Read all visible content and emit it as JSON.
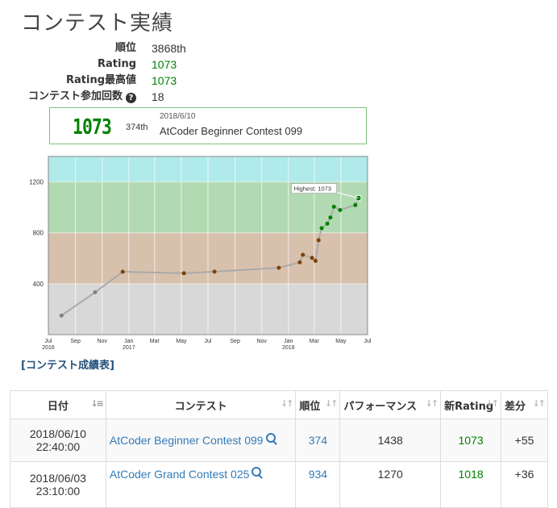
{
  "page_title": "コンテスト実績",
  "stats": [
    {
      "key": "順位",
      "value": "3868th"
    },
    {
      "key": "Rating",
      "value": "1073"
    },
    {
      "key": "Rating最高値",
      "value": "1073"
    },
    {
      "key": "コンテスト参加回数",
      "value": "18"
    }
  ],
  "latest": {
    "rating": "1073",
    "rank": "374th",
    "date": "2018/6/10",
    "contest": "AtCoder Beginner Contest 099"
  },
  "chart_data": {
    "type": "line",
    "y_ticks": [
      400,
      800,
      1200
    ],
    "x_ticks": [
      "Jul 2016",
      "Sep",
      "Nov",
      "Jan 2017",
      "Mar",
      "May",
      "Jul",
      "Sep",
      "Nov",
      "Jan 2018",
      "Mar",
      "May",
      "Jul"
    ],
    "tooltip": "Highest: 1073",
    "bands": [
      {
        "from": 0,
        "to": 400,
        "color": "#d8d8d8"
      },
      {
        "from": 400,
        "to": 800,
        "color": "#d7c1ac"
      },
      {
        "from": 800,
        "to": 1200,
        "color": "#b2dab2"
      },
      {
        "from": 1200,
        "to": 1400,
        "color": "#b0eaea"
      }
    ],
    "y_range": [
      0,
      1400
    ],
    "series": [
      {
        "points": [
          {
            "x": "2016-07-31",
            "y": 150
          },
          {
            "x": "2016-10-16",
            "y": 333
          },
          {
            "x": "2016-12-18",
            "y": 494
          },
          {
            "x": "2017-05-07",
            "y": 482
          },
          {
            "x": "2017-07-16",
            "y": 495
          },
          {
            "x": "2017-12-10",
            "y": 525
          },
          {
            "x": "2018-01-27",
            "y": 568
          },
          {
            "x": "2018-02-03",
            "y": 627
          },
          {
            "x": "2018-02-24",
            "y": 603
          },
          {
            "x": "2018-03-04",
            "y": 580
          },
          {
            "x": "2018-03-11",
            "y": 742
          },
          {
            "x": "2018-03-18",
            "y": 836
          },
          {
            "x": "2018-03-31",
            "y": 872
          },
          {
            "x": "2018-04-07",
            "y": 920
          },
          {
            "x": "2018-04-15",
            "y": 1005
          },
          {
            "x": "2018-04-29",
            "y": 979
          },
          {
            "x": "2018-06-03",
            "y": 1018
          },
          {
            "x": "2018-06-10",
            "y": 1073
          }
        ]
      }
    ]
  },
  "result_link": "[コンテスト成績表]",
  "table": {
    "headers": [
      "日付",
      "コンテスト",
      "順位",
      "パフォーマンス",
      "新Rating",
      "差分"
    ],
    "rows": [
      {
        "date1": "2018/06/10",
        "date2": "22:40:00",
        "contest": "AtCoder Beginner Contest 099",
        "rank": "374",
        "perf": "1438",
        "rating": "1073",
        "diff": "+55"
      },
      {
        "date1": "2018/06/03",
        "date2": "23:10:00",
        "contest": "AtCoder Grand Contest 025",
        "rank": "934",
        "perf": "1270",
        "rating": "1018",
        "diff": "+36"
      }
    ]
  },
  "colors": {
    "green": "#008000",
    "link": "#337ab7"
  }
}
